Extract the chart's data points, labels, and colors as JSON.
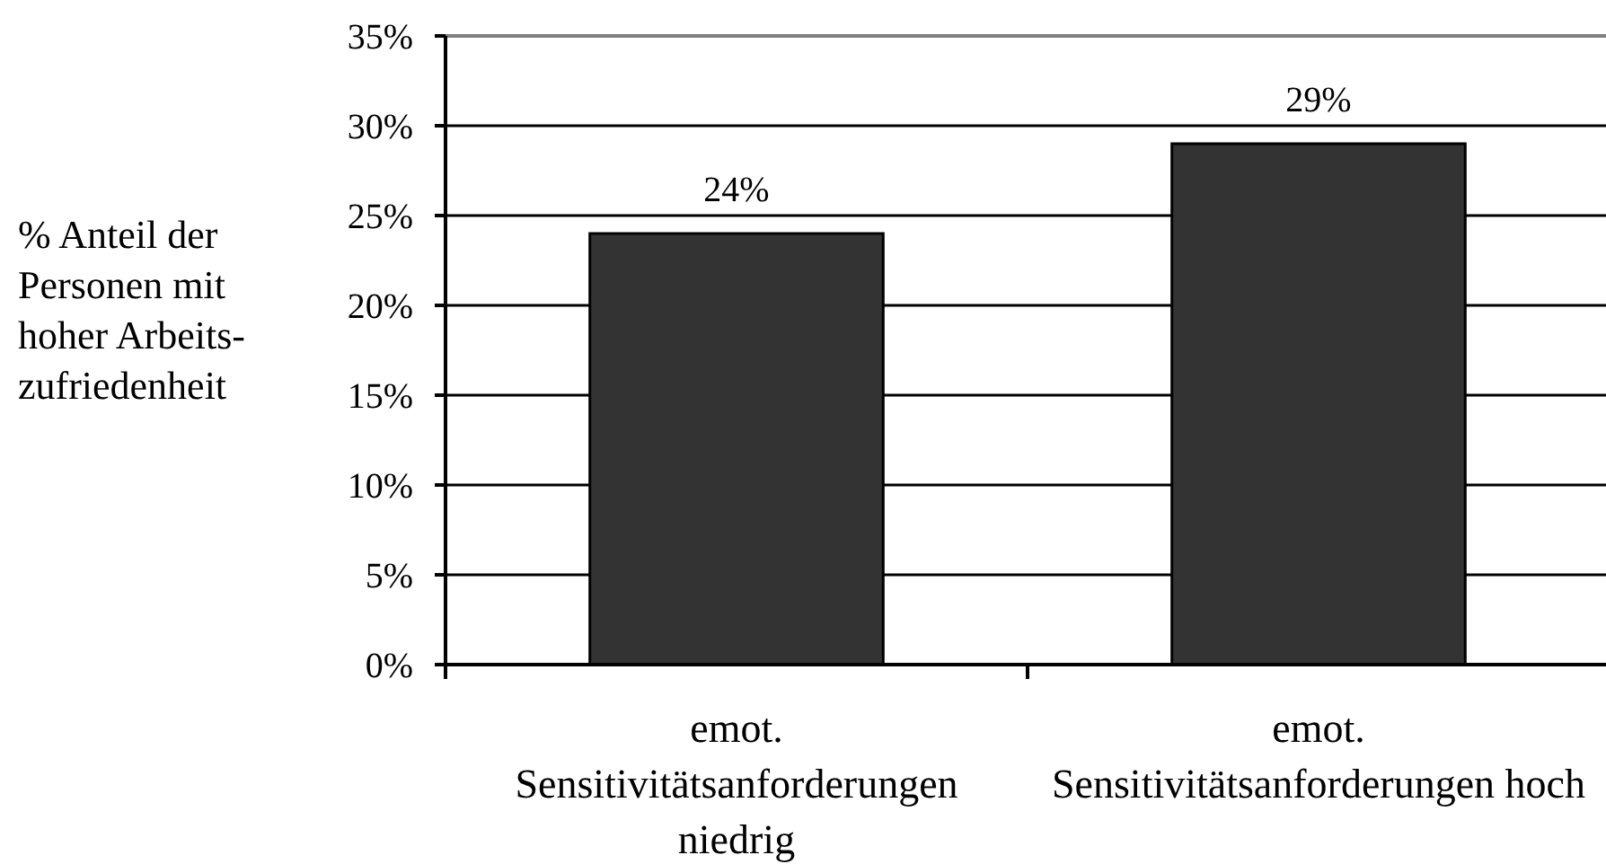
{
  "chart_data": {
    "type": "bar",
    "ylabel": "% Anteil der\nPersonen mit\nhoher Arbeits-\nzufriedenheit",
    "categories": [
      "emot.\nSensitivitätsanforderungen\nniedrig",
      "emot.\nSensitivitätsanforderungen hoch"
    ],
    "values": [
      24,
      29
    ],
    "color": "#333333",
    "value_labels": [
      "24%",
      "29%"
    ],
    "ylim": [
      0,
      35
    ],
    "yticks": [
      {
        "value": 0,
        "label": "0%"
      },
      {
        "value": 5,
        "label": "5%"
      },
      {
        "value": 10,
        "label": "10%"
      },
      {
        "value": 15,
        "label": "15%"
      },
      {
        "value": 20,
        "label": "20%"
      },
      {
        "value": 25,
        "label": "25%"
      },
      {
        "value": 30,
        "label": "30%"
      },
      {
        "value": 35,
        "label": "35%"
      }
    ],
    "grid": "y"
  }
}
